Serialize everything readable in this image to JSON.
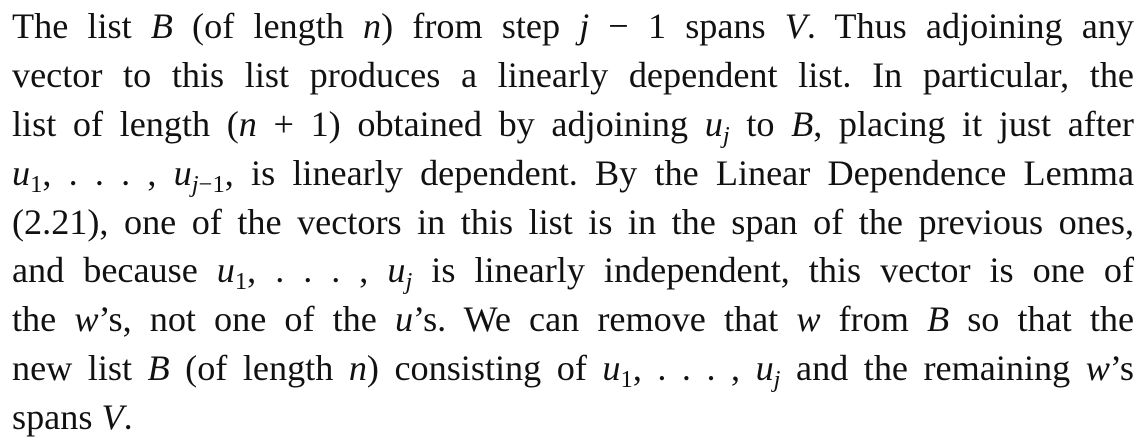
{
  "passage": {
    "l1": {
      "a": "The list ",
      "b": "B",
      "c": " (of length ",
      "d": "n",
      "e": ") from step ",
      "f": "j",
      "g": " − 1 spans ",
      "h": "V",
      "i": ". Thus adjoining any"
    },
    "l2": {
      "a": "vector to this list produces a linearly dependent list. In particular, the"
    },
    "l3": {
      "a": "list of length (",
      "b": "n",
      "c": " + 1) obtained by adjoining ",
      "d": "u",
      "e": "j",
      "f": " to ",
      "g": "B",
      "h": ", placing it just after"
    },
    "l4": {
      "a": "u",
      "b": "1",
      "c": ", . . . , ",
      "d": "u",
      "e": "j",
      "f": "−1",
      "g": ", is linearly dependent. By the Linear Dependence Lemma"
    },
    "l5": {
      "a": "(2.21), one of the vectors in this list is in the span of the previous ones,"
    },
    "l6": {
      "a": "and because ",
      "b": "u",
      "c": "1",
      "d": ", . . . , ",
      "e": "u",
      "f": "j",
      "g": " is linearly independent, this vector is one of"
    },
    "l7": {
      "a": "the ",
      "b": "w",
      "c": "’s, not one of the ",
      "d": "u",
      "e": "’s. We can remove that ",
      "f": "w",
      "g": " from ",
      "h": "B",
      "i": " so that the"
    },
    "l8": {
      "a": "new list ",
      "b": "B",
      "c": " (of length ",
      "d": "n",
      "e": ") consisting of ",
      "f": "u",
      "g": "1",
      "h": ", . . . , ",
      "i": "u",
      "j": "j",
      "k": " and the remaining ",
      "l": "w",
      "m": "’s"
    },
    "l9": {
      "a": "spans ",
      "b": "V",
      "c": "."
    }
  }
}
